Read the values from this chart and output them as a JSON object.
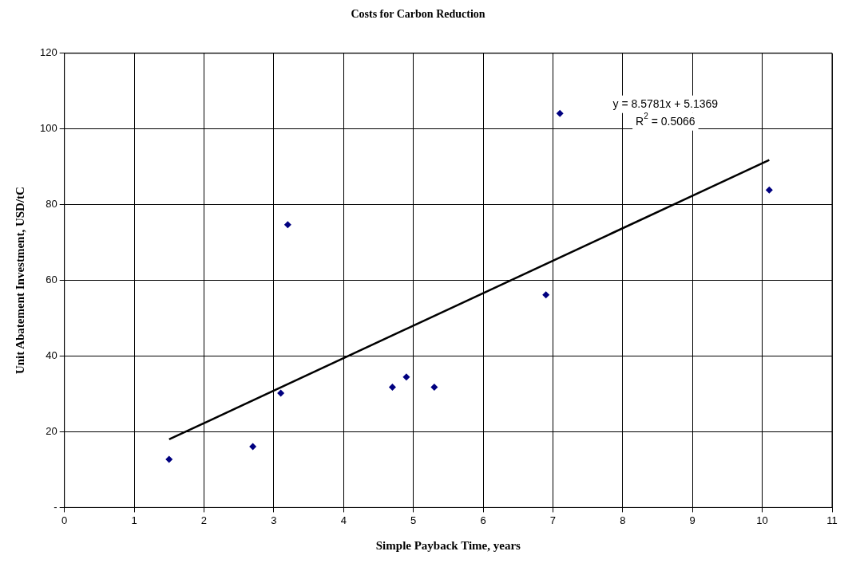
{
  "chart_data": {
    "type": "scatter",
    "title": "Costs for Carbon Reduction",
    "xlabel": "Simple Payback Time, years",
    "ylabel": "Unit Abatement Investment, USD/tC",
    "series": [
      {
        "color": "#000080",
        "marker": "diamond",
        "x": [
          1.5,
          2.7,
          3.1,
          3.2,
          4.7,
          4.9,
          5.3,
          6.9,
          7.1,
          10.1
        ],
        "values": [
          12.7,
          16.1,
          30.2,
          74.7,
          31.8,
          34.5,
          31.8,
          56.2,
          104.1,
          83.9
        ]
      },
      {
        "type": "line",
        "color": "#000000",
        "marker": "none",
        "x": [
          1.5,
          10.1
        ],
        "values": [
          18.0,
          91.8
        ]
      }
    ],
    "annotations": [
      "y = 8.5781x + 5.1369",
      "R$^{2}$ = 0.5066"
    ],
    "xlim": [
      0,
      11
    ],
    "xticks": [
      0,
      1,
      2,
      3,
      4,
      5,
      6,
      7,
      8,
      9,
      10,
      11
    ],
    "ylim": [
      0,
      120
    ],
    "yticks": [
      {
        "value": 0,
        "label": "-"
      },
      20,
      40,
      60,
      80,
      100,
      120
    ],
    "grid": true,
    "legend": false
  }
}
